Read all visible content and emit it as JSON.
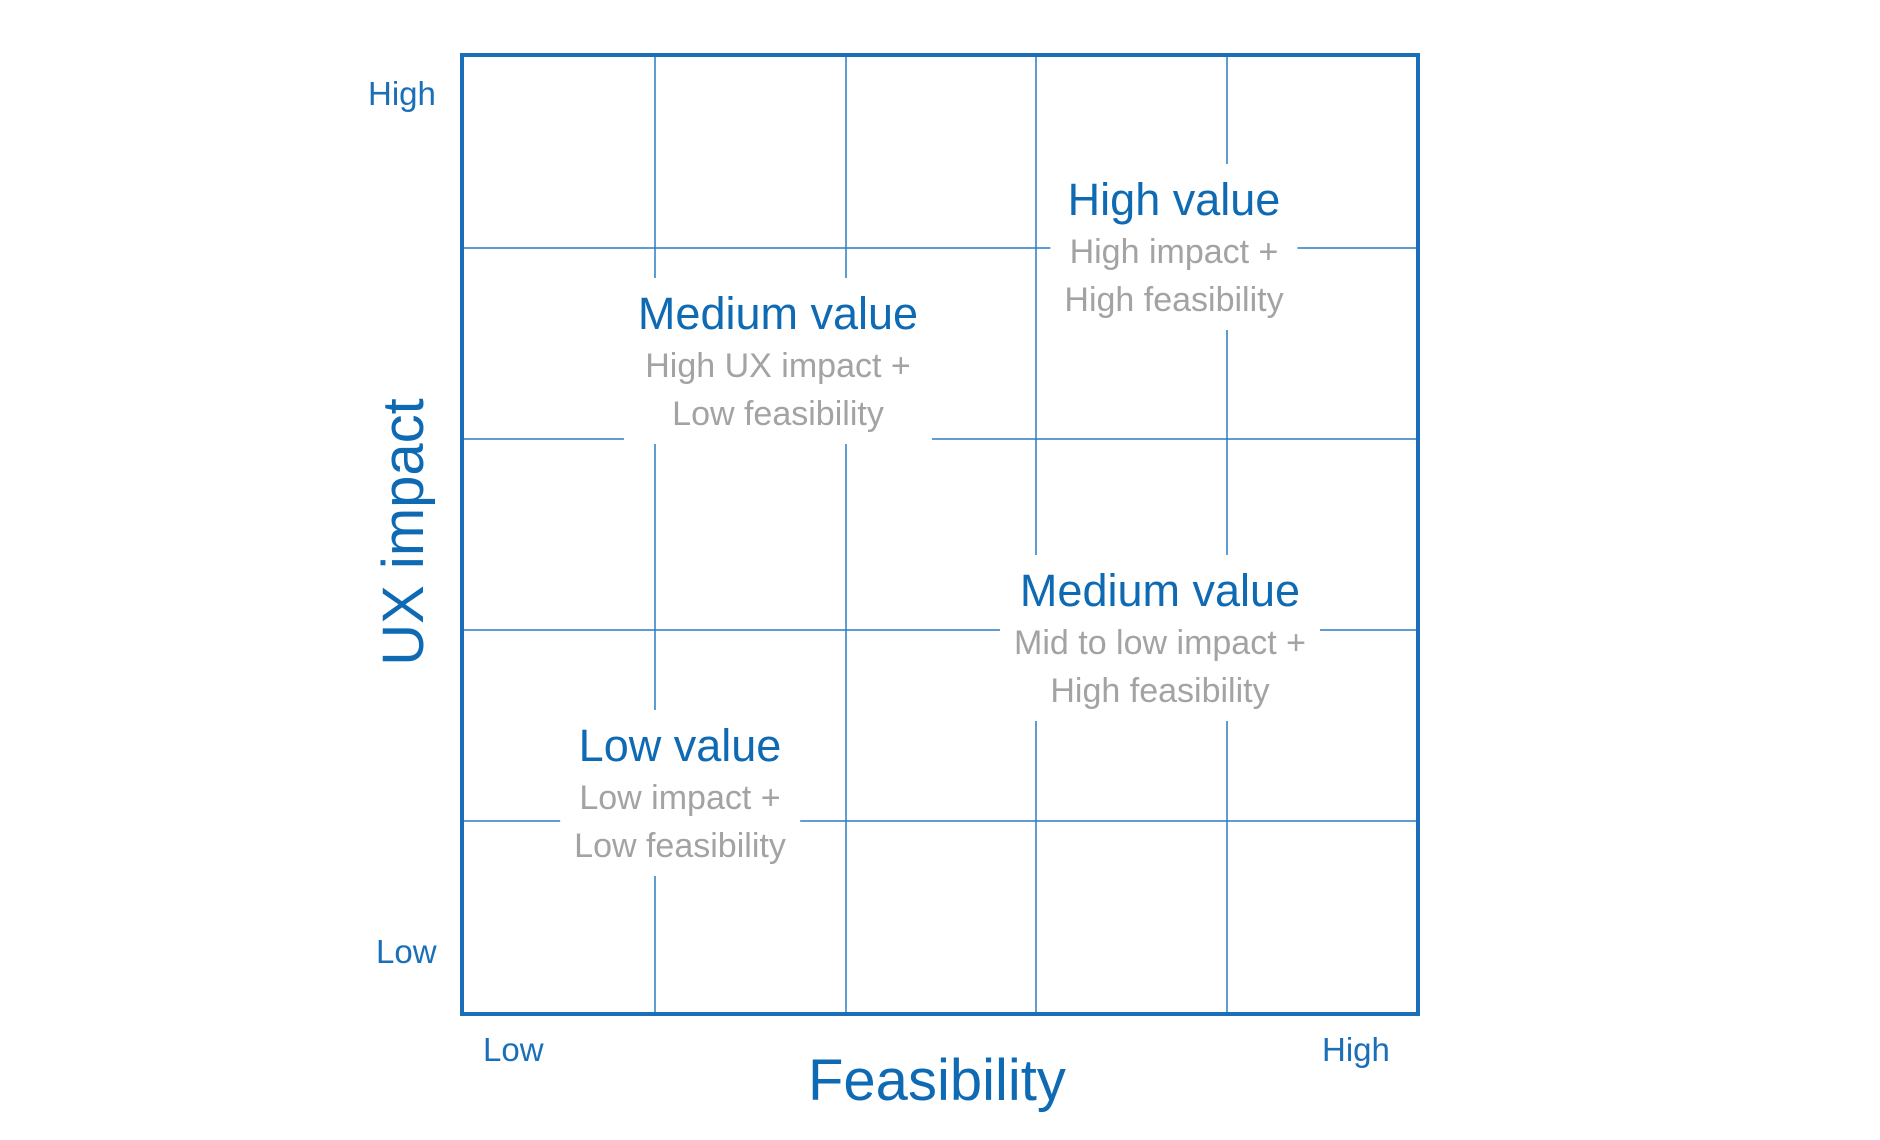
{
  "diagram": {
    "type": "priority-matrix",
    "grid": {
      "rows": 5,
      "columns": 5
    },
    "colors": {
      "frame": "#1a6fb8",
      "grid": "#2a7bc4",
      "title": "#0f6ab4",
      "description": "#a3a3a3",
      "background": "#ffffff"
    }
  },
  "axes": {
    "y": {
      "title": "UX impact",
      "high": "High",
      "low": "Low"
    },
    "x": {
      "title": "Feasibility",
      "low": "Low",
      "high": "High"
    }
  },
  "regions": [
    {
      "id": "high-value",
      "title": "High value",
      "line1": "High impact +",
      "line2": "High feasibility"
    },
    {
      "id": "medium-value-high-ux",
      "title": "Medium value",
      "line1": "High UX impact +",
      "line2": "Low feasibility"
    },
    {
      "id": "medium-value-high-feasibility",
      "title": "Medium value",
      "line1": "Mid to low impact +",
      "line2": "High feasibility"
    },
    {
      "id": "low-value",
      "title": "Low value",
      "line1": "Low impact +",
      "line2": "Low feasibility"
    }
  ]
}
